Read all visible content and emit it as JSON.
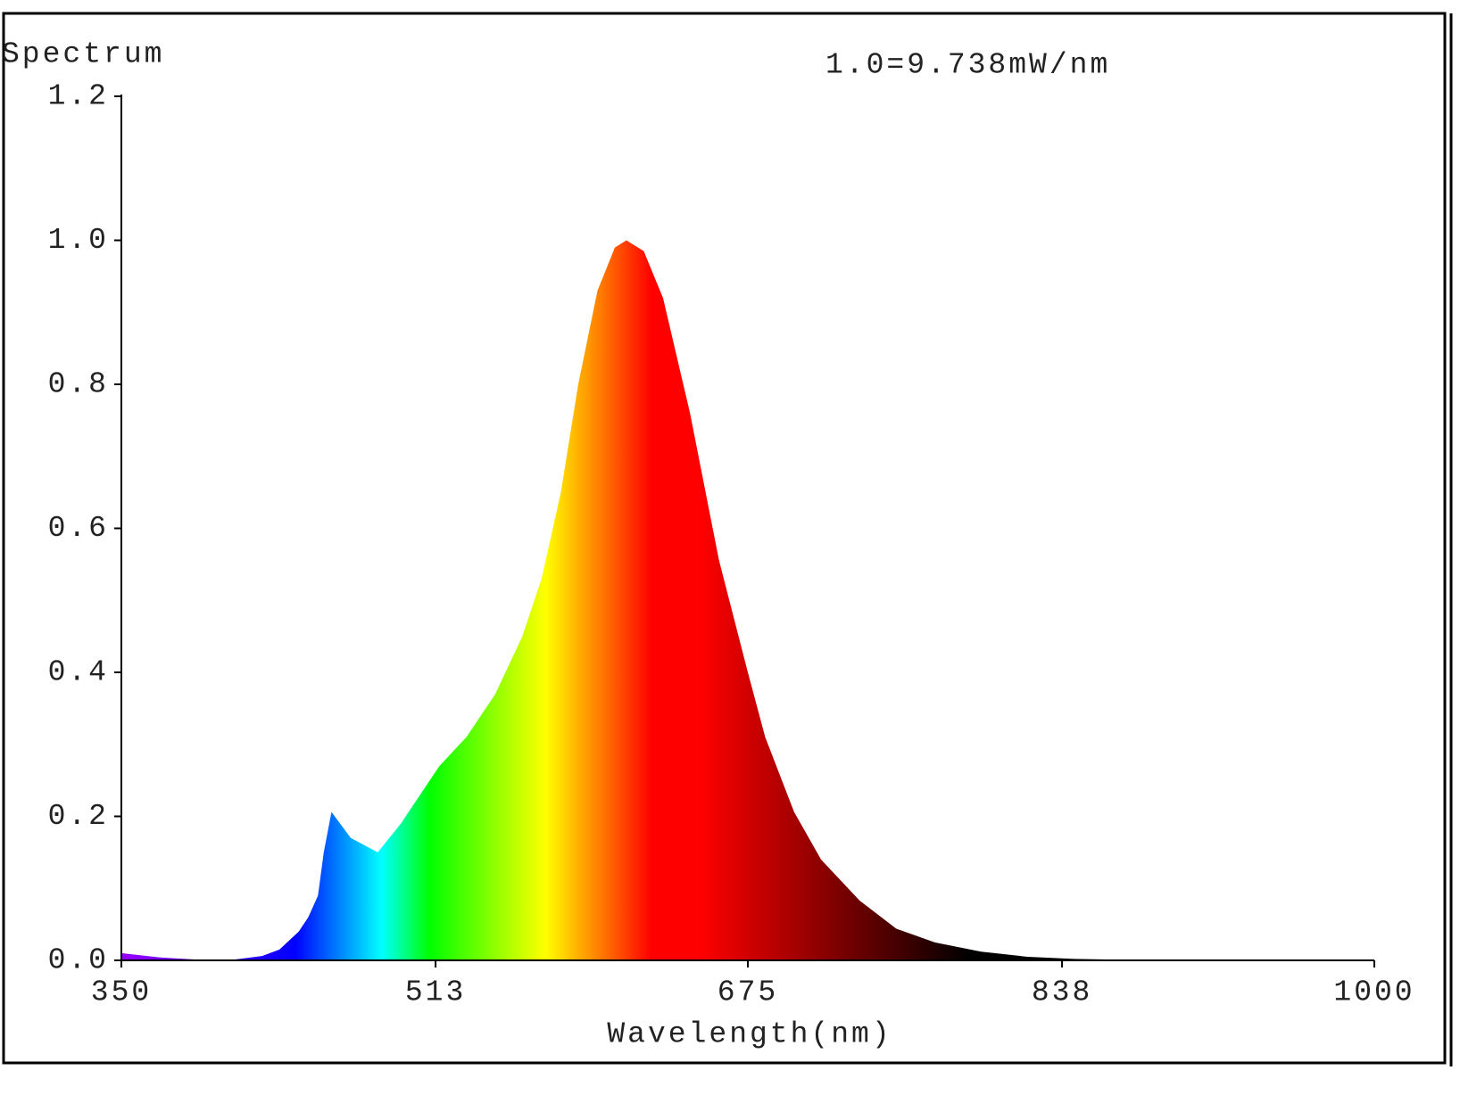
{
  "chart_data": {
    "type": "area",
    "title": "Spectrum",
    "annotation": "1.0=9.738mW/nm",
    "x_label": "Wavelength(nm)",
    "x": [
      350,
      370,
      390,
      408,
      423,
      432,
      442,
      447,
      452,
      455,
      459,
      469,
      476,
      483,
      495,
      515,
      529,
      544,
      558,
      568,
      578,
      587,
      597,
      606,
      612,
      621,
      631,
      645,
      660,
      675,
      684,
      699,
      713,
      733,
      752,
      772,
      796,
      820,
      844,
      868,
      1000
    ],
    "values": [
      0.01,
      0.004,
      0.001,
      0.001,
      0.006,
      0.015,
      0.04,
      0.06,
      0.09,
      0.15,
      0.206,
      0.17,
      0.16,
      0.15,
      0.19,
      0.27,
      0.31,
      0.37,
      0.45,
      0.53,
      0.65,
      0.8,
      0.93,
      0.99,
      1.0,
      0.985,
      0.92,
      0.76,
      0.556,
      0.4,
      0.31,
      0.206,
      0.14,
      0.083,
      0.044,
      0.025,
      0.012,
      0.005,
      0.002,
      0.001,
      0
    ],
    "xlim": [
      350,
      1000
    ],
    "xticks": [
      350,
      513,
      675,
      838,
      1000
    ],
    "ylim": [
      0,
      1.2
    ],
    "yticks": [
      {
        "value": 0,
        "label": "0.0"
      },
      0.2,
      0.4,
      0.6,
      0.8,
      {
        "value": 1,
        "label": "1.0"
      },
      1.2
    ],
    "grid": false
  }
}
